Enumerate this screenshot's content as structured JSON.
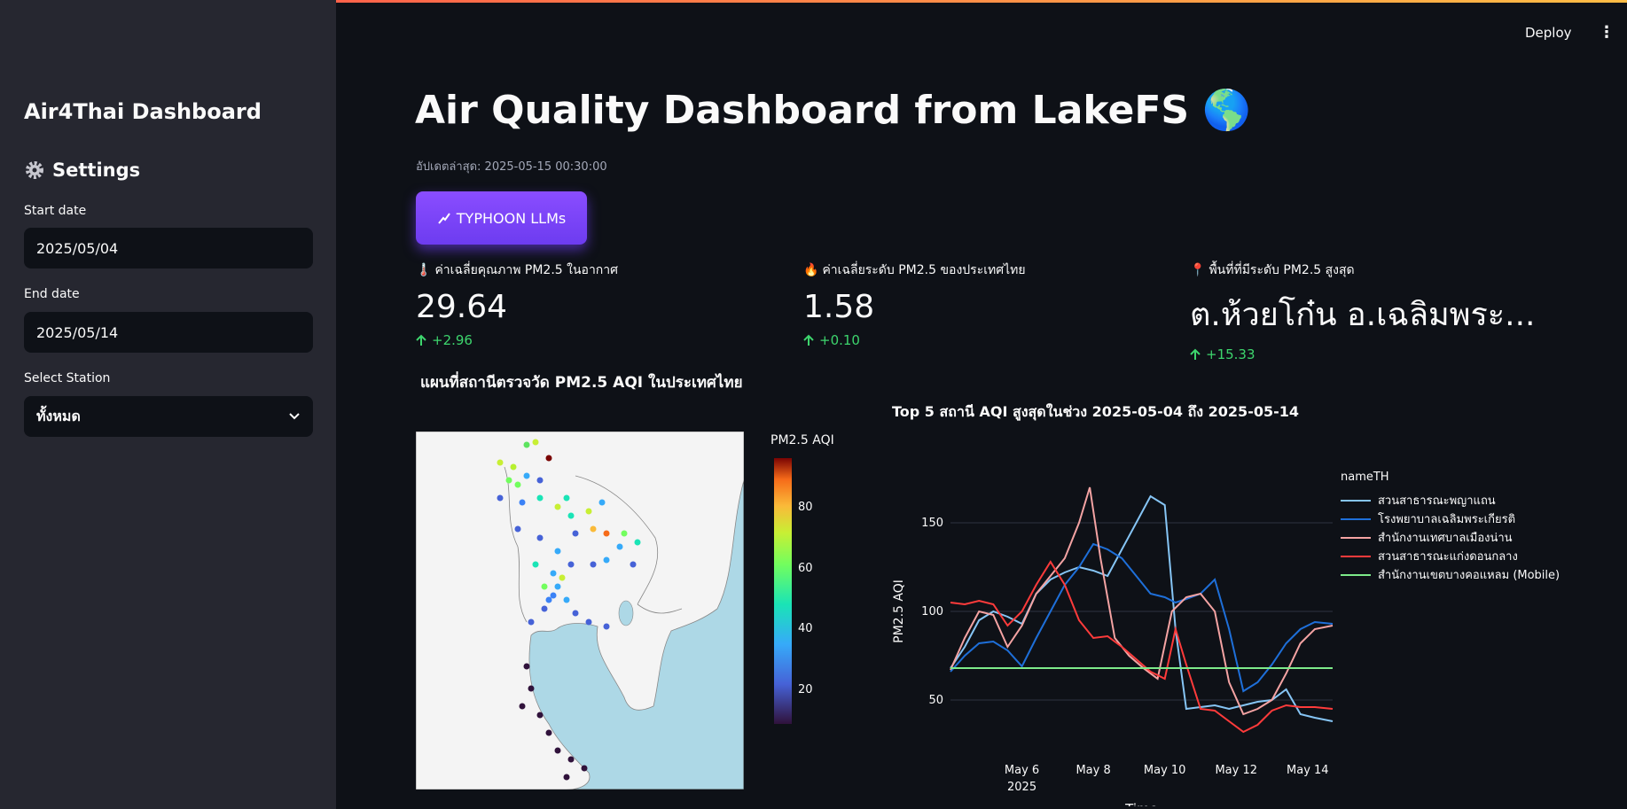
{
  "header": {
    "deploy_label": "Deploy",
    "menu_icon": "vertical-dots-icon"
  },
  "sidebar": {
    "title": "Air4Thai Dashboard",
    "settings_label": "Settings",
    "start_label": "Start date",
    "start_value": "2025/05/04",
    "end_label": "End date",
    "end_value": "2025/05/14",
    "station_label": "Select Station",
    "station_value": "ทั้งหมด"
  },
  "main": {
    "title": "Air Quality Dashboard from LakeFS 🌎",
    "updated": "อัปเดตล่าสุด: 2025-05-15 00:30:00",
    "typhoon_button": "TYPHOON LLMs"
  },
  "metrics": [
    {
      "icon": "🌡️",
      "label": "ค่าเฉลี่ยคุณภาพ PM2.5 ในอากาศ",
      "value": "29.64",
      "delta": "+2.96"
    },
    {
      "icon": "🔥",
      "label": "ค่าเฉลี่ยระดับ PM2.5 ของประเทศไทย",
      "value": "1.58",
      "delta": "+0.10"
    },
    {
      "icon": "📍",
      "label": "พื้นที่ที่มีระดับ PM2.5 สูงสุด",
      "value": "ต.ห้วยโก๋น อ.เฉลิมพระ...",
      "delta": "+15.33"
    }
  ],
  "map": {
    "title": "แผนที่สถานีตรวจวัด PM2.5 AQI ในประเทศไทย",
    "colorbar_title": "PM2.5 AQI",
    "colorbar_ticks": [
      20,
      40,
      60,
      80
    ]
  },
  "chart_data": {
    "type": "line",
    "title": "Top 5 สถานี AQI สูงสุดในช่วง 2025-05-04 ถึง 2025-05-14",
    "xlabel": "Time",
    "ylabel": "PM2.5 AQI",
    "legend_title": "nameTH",
    "legend_position": "right",
    "grid": true,
    "x_ticks": [
      "May 6",
      "May 8",
      "May 10",
      "May 12",
      "May 14"
    ],
    "x_tick_values": [
      6,
      8,
      10,
      12,
      14
    ],
    "x_subtitle": "2025",
    "xlim": [
      4,
      14.7
    ],
    "ylim": [
      20,
      180
    ],
    "y_ticks": [
      50,
      100,
      150
    ],
    "series": [
      {
        "name": "สวนสาธารณะพญาแถน",
        "color": "#86c5f5",
        "x": [
          4,
          4.4,
          4.8,
          5.2,
          5.6,
          6,
          6.4,
          6.8,
          7.2,
          7.6,
          8,
          8.4,
          8.8,
          9.2,
          9.6,
          10,
          10.3,
          10.6,
          11,
          11.4,
          11.8,
          12.2,
          12.6,
          13,
          13.4,
          13.8,
          14.2,
          14.7
        ],
        "y": [
          68,
          80,
          95,
          100,
          97,
          93,
          110,
          118,
          122,
          125,
          123,
          120,
          135,
          150,
          165,
          160,
          90,
          45,
          46,
          47,
          45,
          47,
          49,
          50,
          56,
          42,
          40,
          38
        ]
      },
      {
        "name": "โรงพยาบาลเฉลิมพระเกียรติ",
        "color": "#1e6fd9",
        "x": [
          4,
          4.4,
          4.8,
          5.2,
          5.6,
          6,
          6.4,
          6.8,
          7.2,
          7.6,
          8,
          8.4,
          8.8,
          9.2,
          9.6,
          10,
          10.3,
          10.6,
          11,
          11.4,
          11.8,
          12.2,
          12.6,
          13,
          13.4,
          13.8,
          14.2,
          14.7
        ],
        "y": [
          66,
          75,
          82,
          83,
          78,
          69,
          85,
          100,
          115,
          125,
          138,
          135,
          130,
          120,
          110,
          108,
          105,
          107,
          110,
          118,
          90,
          55,
          60,
          70,
          82,
          90,
          94,
          93
        ]
      },
      {
        "name": "สำนักงานเทศบาลเมืองน่าน",
        "color": "#f4a3a3",
        "x": [
          4,
          4.4,
          4.8,
          5.2,
          5.6,
          6,
          6.4,
          6.8,
          7.2,
          7.6,
          7.9,
          8.2,
          8.6,
          9,
          9.4,
          9.8,
          10.2,
          10.6,
          11,
          11.4,
          11.8,
          12.2,
          12.6,
          13,
          13.4,
          13.8,
          14.2,
          14.7
        ],
        "y": [
          67,
          85,
          100,
          98,
          80,
          92,
          110,
          120,
          130,
          150,
          170,
          130,
          85,
          75,
          68,
          62,
          100,
          108,
          110,
          100,
          60,
          42,
          45,
          50,
          65,
          82,
          90,
          92
        ]
      },
      {
        "name": "สวนสาธารณะแก่งดอนกลาง",
        "color": "#ff3b3b",
        "x": [
          4,
          4.4,
          4.8,
          5.2,
          5.6,
          6,
          6.4,
          6.8,
          7.2,
          7.6,
          8,
          8.4,
          8.8,
          9.2,
          9.6,
          10,
          10.3,
          10.6,
          11,
          11.4,
          11.8,
          12.2,
          12.6,
          13,
          13.4,
          13.8,
          14.2,
          14.7
        ],
        "y": [
          105,
          104,
          106,
          104,
          92,
          100,
          115,
          128,
          115,
          95,
          85,
          86,
          80,
          73,
          66,
          62,
          90,
          70,
          45,
          44,
          38,
          32,
          36,
          44,
          47,
          46,
          46,
          45
        ]
      },
      {
        "name": "สำนักงานเขตบางคอแหลม (Mobile)",
        "color": "#7dea8a",
        "x": [
          4,
          14.7
        ],
        "y": [
          68,
          68
        ]
      }
    ]
  }
}
